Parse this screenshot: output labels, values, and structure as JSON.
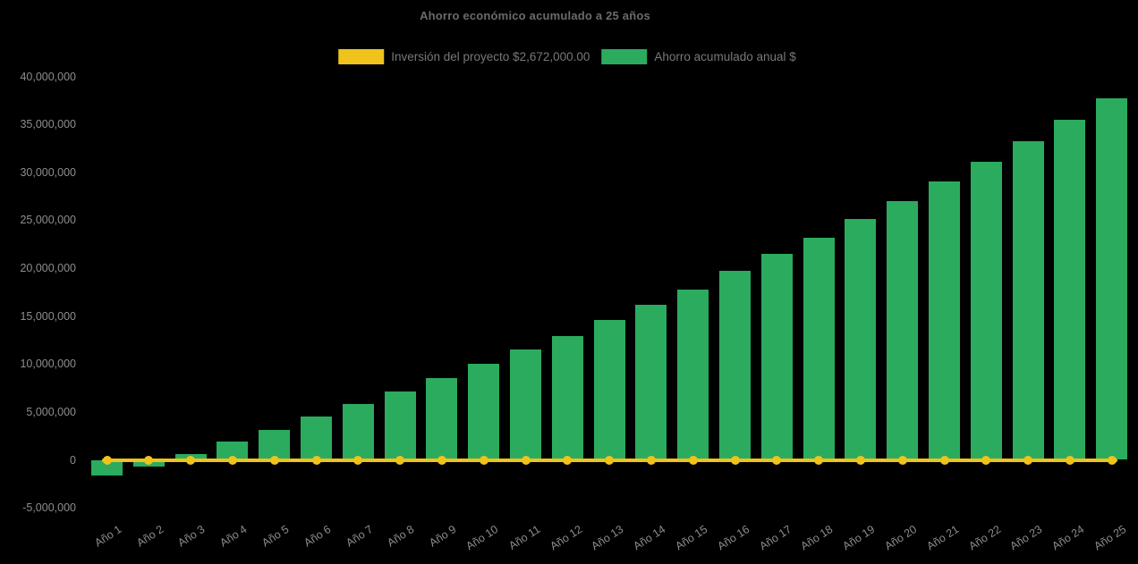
{
  "title": "Ahorro económico acumulado a 25 años",
  "legend": {
    "investment": {
      "label": "Inversión del proyecto $2,672,000.00",
      "color": "#efc31b"
    },
    "savings": {
      "label": "Ahorro acumulado anual $",
      "color": "#2bab5e"
    }
  },
  "chart_data": {
    "type": "bar",
    "title": "Ahorro económico acumulado a 25 años",
    "categories": [
      "Año 1",
      "Año 2",
      "Año 3",
      "Año 4",
      "Año 5",
      "Año 6",
      "Año 7",
      "Año 8",
      "Año 9",
      "Año 10",
      "Año 11",
      "Año 12",
      "Año 13",
      "Año 14",
      "Año 15",
      "Año 16",
      "Año 17",
      "Año 18",
      "Año 19",
      "Año 20",
      "Año 21",
      "Año 22",
      "Año 23",
      "Año 24",
      "Año 25"
    ],
    "series": [
      {
        "name": "Ahorro acumulado anual $",
        "type": "bar",
        "color": "#2bab5e",
        "values": [
          -1600000,
          -700000,
          600000,
          1900000,
          3100000,
          4500000,
          5800000,
          7100000,
          8500000,
          10000000,
          11500000,
          12900000,
          14600000,
          16200000,
          17800000,
          19700000,
          21500000,
          23200000,
          25100000,
          27000000,
          29000000,
          31100000,
          33200000,
          35500000,
          37700000
        ]
      },
      {
        "name": "Inversión del proyecto $2,672,000.00",
        "type": "line",
        "color": "#efc31b",
        "marker": "circle",
        "values": [
          0,
          0,
          0,
          0,
          0,
          0,
          0,
          0,
          0,
          0,
          0,
          0,
          0,
          0,
          0,
          0,
          0,
          0,
          0,
          0,
          0,
          0,
          0,
          0,
          0
        ]
      }
    ],
    "ylim": [
      -5000000,
      40000000
    ],
    "yticks": [
      {
        "value": 40000000,
        "label": "40,000,000"
      },
      {
        "value": 35000000,
        "label": "35,000,000"
      },
      {
        "value": 30000000,
        "label": "30,000,000"
      },
      {
        "value": 25000000,
        "label": "25,000,000"
      },
      {
        "value": 20000000,
        "label": "20,000,000"
      },
      {
        "value": 15000000,
        "label": "15,000,000"
      },
      {
        "value": 10000000,
        "label": "10,000,000"
      },
      {
        "value": 5000000,
        "label": "5,000,000"
      },
      {
        "value": 0,
        "label": "0"
      },
      {
        "value": -5000000,
        "label": "-5,000,000"
      }
    ],
    "grid": false,
    "legend_position": "top",
    "background": "#000000"
  }
}
